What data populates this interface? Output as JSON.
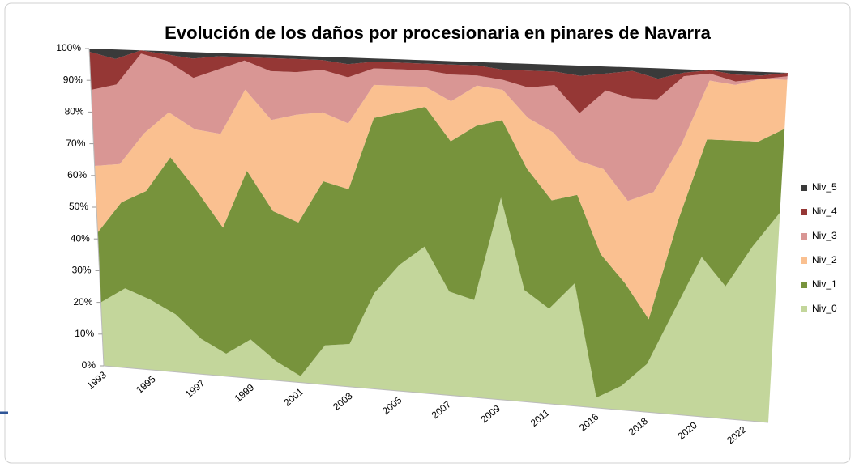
{
  "chart_data": {
    "type": "stacked_area",
    "title": "Evolución de los daños por procesionaria en pinares de Navarra",
    "categories": [
      "1993",
      null,
      "1995",
      null,
      "1997",
      null,
      "1999",
      null,
      "2001",
      null,
      "2003",
      null,
      "2005",
      null,
      "2007",
      null,
      "2009",
      null,
      "2011",
      null,
      "2016",
      null,
      "2018",
      null,
      "2020",
      null,
      "2022",
      null
    ],
    "series": [
      {
        "name": "Niv_0",
        "color": "#c3d69b",
        "values": [
          20,
          25,
          22,
          18,
          11,
          7,
          12,
          6,
          2,
          12,
          13,
          29,
          38,
          44,
          31,
          29,
          60,
          33,
          28,
          36,
          3,
          7,
          14,
          30,
          46,
          38,
          50,
          60
        ]
      },
      {
        "name": "Niv_1",
        "color": "#77933c",
        "values": [
          22,
          27,
          34,
          49,
          46,
          39,
          52,
          46,
          47,
          50,
          47,
          53,
          46,
          42,
          45,
          52,
          23,
          36,
          32,
          26,
          42,
          30,
          13,
          26,
          34,
          42,
          30,
          24
        ]
      },
      {
        "name": "Niv_2",
        "color": "#fac090",
        "values": [
          21,
          12,
          18,
          14,
          19,
          29,
          25,
          28,
          33,
          21,
          20,
          10,
          8,
          6,
          12,
          12,
          9,
          15,
          20,
          10,
          25,
          24,
          37,
          22,
          17,
          16,
          18,
          14
        ]
      },
      {
        "name": "Niv_3",
        "color": "#d99694",
        "values": [
          24,
          25,
          25,
          16,
          16,
          20,
          9,
          15,
          13,
          13,
          14,
          5,
          5,
          5,
          8,
          3,
          3,
          9,
          14,
          14,
          23,
          30,
          27,
          20,
          2,
          1,
          0,
          1
        ]
      },
      {
        "name": "Niv_4",
        "color": "#953735",
        "values": [
          12,
          8,
          1,
          2,
          6,
          4,
          1,
          4,
          4,
          3,
          4,
          2,
          2,
          2,
          3,
          3,
          3,
          5,
          4,
          11,
          5,
          8,
          6,
          1,
          1,
          2,
          1,
          1
        ]
      },
      {
        "name": "Niv_5",
        "color": "#3a3a3a",
        "values": [
          1,
          3,
          0,
          1,
          2,
          1,
          1,
          1,
          1,
          1,
          2,
          1,
          1,
          1,
          1,
          1,
          2,
          2,
          2,
          3,
          2,
          1,
          3,
          1,
          0,
          1,
          1,
          0
        ]
      }
    ],
    "ylim": [
      0,
      100
    ],
    "yticks": [
      {
        "value": 0,
        "label": "0%"
      },
      {
        "value": 10,
        "label": "10%"
      },
      {
        "value": 20,
        "label": "20%"
      },
      {
        "value": 30,
        "label": "30%"
      },
      {
        "value": 40,
        "label": "40%"
      },
      {
        "value": 50,
        "label": "50%"
      },
      {
        "value": 60,
        "label": "60%"
      },
      {
        "value": 70,
        "label": "70%"
      },
      {
        "value": 80,
        "label": "80%"
      },
      {
        "value": 90,
        "label": "90%"
      },
      {
        "value": 100,
        "label": "100%"
      }
    ],
    "legend": "right"
  }
}
